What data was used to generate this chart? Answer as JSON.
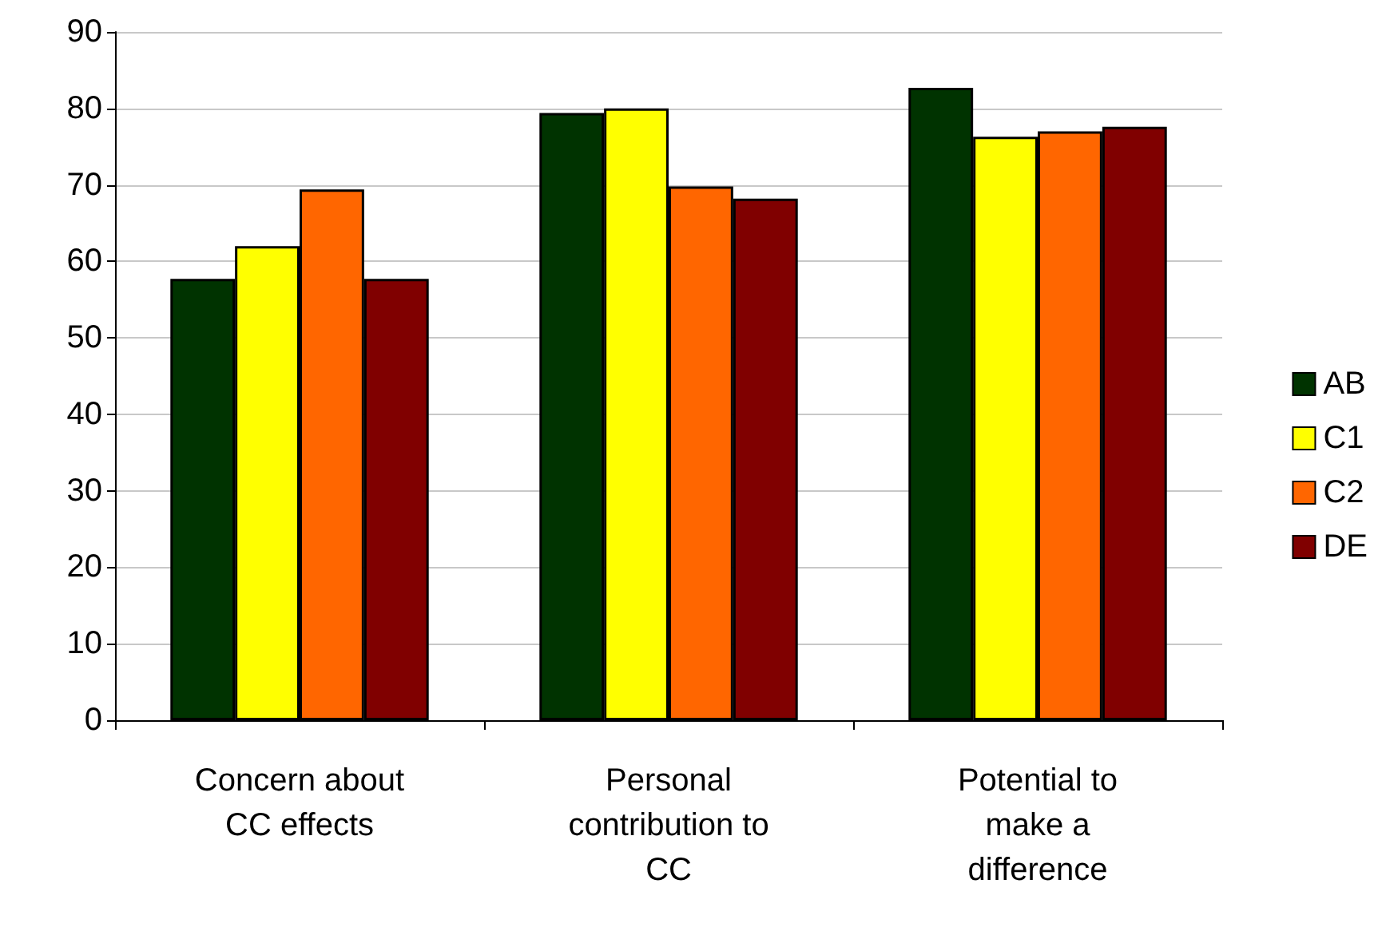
{
  "chart_data": {
    "type": "bar",
    "categories": [
      "Concern about\nCC effects",
      "Personal\ncontribution to\nCC",
      "Potential to\nmake a\ndifference"
    ],
    "series": [
      {
        "name": "AB",
        "color": "#003300",
        "values": [
          57.7,
          79.4,
          82.7
        ]
      },
      {
        "name": "C1",
        "color": "#ffff00",
        "values": [
          62,
          80,
          76.3
        ]
      },
      {
        "name": "C2",
        "color": "#ff6600",
        "values": [
          69.4,
          69.8,
          77
        ]
      },
      {
        "name": "DE",
        "color": "#800000",
        "values": [
          57.7,
          68.2,
          77.6
        ]
      }
    ],
    "ylim": [
      0,
      90
    ],
    "yticks": [
      0,
      10,
      20,
      30,
      40,
      50,
      60,
      70,
      80,
      90
    ],
    "grid": "y",
    "legend": "right"
  }
}
